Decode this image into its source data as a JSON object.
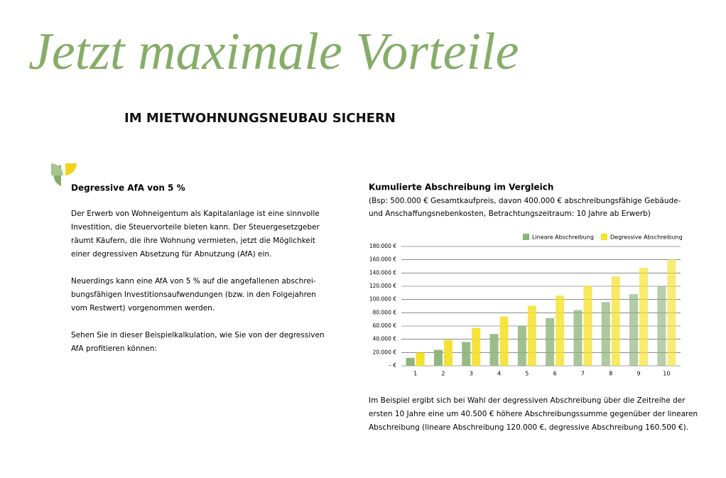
{
  "header": {
    "title": "Jetzt maximale Vorteile",
    "subtitle": "IM MIETWOHNUNGSNEUBAU SICHERN"
  },
  "left": {
    "heading": "Degressive AfA von 5 %",
    "paragraphs": [
      [
        "Der Erwerb von Wohneigentum als Kapitalanlage ist eine sinnvolle",
        "Investition, die Steuervorteile bieten kann. Der Steuergesetzgeber",
        "räumt Käufern, die ihre Wohnung vermieten, jetzt die Möglichkeit",
        "einer degressiven Absetzung für Abnutzung (AfA) ein."
      ],
      [
        "Neuerdings kann eine AfA von 5 % auf die angefallenen abschrei-",
        "bungsfähigen Investitionsaufwendungen (bzw. in den Folgejahren",
        "vom Restwert) vorgenommen werden."
      ],
      [
        "Sehen Sie in dieser Beispielkalkulation, wie Sie von der degressiven",
        "AfA profitieren können:"
      ]
    ]
  },
  "chart_data": {
    "type": "bar",
    "title": "Kumulierte Abschreibung im Vergleich",
    "subtitle": [
      "(Bsp: 500.000 € Gesamtkaufpreis, davon 400.000 € abschreibungsfähige Gebäude-",
      "und Anschaffungsnebenkosten, Betrachtungszeitraum: 10 Jahre ab Erwerb)"
    ],
    "categories": [
      "1",
      "2",
      "3",
      "4",
      "5",
      "6",
      "7",
      "8",
      "9",
      "10"
    ],
    "series": [
      {
        "name": "Lineare Abschreibung",
        "color": "#8db47a",
        "values": [
          12000,
          24000,
          36000,
          48000,
          60000,
          72000,
          84000,
          96000,
          108000,
          120000
        ]
      },
      {
        "name": "Degressive Abschreibung",
        "color": "#f4e12a",
        "values": [
          20000,
          39000,
          57050,
          74200,
          90500,
          106000,
          120700,
          134600,
          147900,
          160500
        ]
      }
    ],
    "ylim": [
      0,
      180000
    ],
    "yticks": [
      {
        "value": 0,
        "label": "– €"
      },
      {
        "value": 20000,
        "label": "20.000 €"
      },
      {
        "value": 40000,
        "label": "40.000 €"
      },
      {
        "value": 60000,
        "label": "60.000 €"
      },
      {
        "value": 80000,
        "label": "80.000 €"
      },
      {
        "value": 100000,
        "label": "100.000 €"
      },
      {
        "value": 120000,
        "label": "120.000 €"
      },
      {
        "value": 140000,
        "label": "140.000 €"
      },
      {
        "value": 160000,
        "label": "160.000 €"
      },
      {
        "value": 180000,
        "label": "180.000 €"
      }
    ],
    "grid": true,
    "legend": "top-right"
  },
  "footer_text": [
    "Im Beispiel ergibt sich bei Wahl der degressiven Abschreibung über die Zeitreihe der",
    "ersten 10 Jahre eine um 40.500 € höhere Abschreibungssumme gegenüber der linearen",
    "Abschreibung (lineare Abschreibung 120.000 €, degressive Abschreibung 160.500 €)."
  ]
}
